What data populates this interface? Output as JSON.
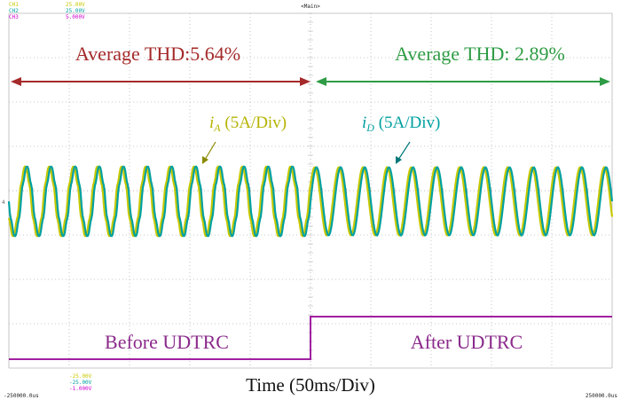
{
  "scope": {
    "top_center_label": "<Main>",
    "side_marker": "4",
    "channels": [
      {
        "name": "CH1",
        "value": "25.00V",
        "color": "#c8c800"
      },
      {
        "name": "CH2",
        "value": "25.00V",
        "color": "#00a0a0"
      },
      {
        "name": "CH3",
        "value": "5.000V",
        "color": "#d000d0"
      }
    ],
    "bottom_values": [
      {
        "value": "-25.00V",
        "color": "#c8c800"
      },
      {
        "value": "-25.00V",
        "color": "#00a0a0"
      },
      {
        "value": "-1.000V",
        "color": "#d000d0"
      }
    ],
    "time_start": "-250000.0us",
    "time_end": "250000.0us"
  },
  "annotations": {
    "thd_before": "Average THD:5.64%",
    "thd_after": "Average THD: 2.89%",
    "ia_symbol": "i",
    "ia_sub": "A",
    "ia_scale": " (5A/Div)",
    "id_symbol": "i",
    "id_sub": "D",
    "id_scale": " (5A/Div)",
    "before_label": "Before UDTRC",
    "after_label": "After UDTRC",
    "time_label": "Time (50ms/Div)"
  },
  "colors": {
    "thd_before": "#a52a2a",
    "thd_after": "#2e9c44",
    "ia": "#c8c800",
    "id": "#00a0a0",
    "step": "#a020a0",
    "step_text": "#8b2a8b",
    "grid": "#b8b8b8"
  },
  "chart_data": {
    "type": "line",
    "x_range_ms": [
      -250,
      250
    ],
    "x_division_ms": 50,
    "grid": true,
    "series": [
      {
        "name": "iA",
        "frequency_hz": 50,
        "amplitude_div": 1.6,
        "phase_offset_ms": -1.5,
        "distorted_before_ms": 0
      },
      {
        "name": "iD",
        "frequency_hz": 50,
        "amplitude_div": 1.6,
        "phase_offset_ms": 0,
        "distorted_before_ms": 0
      },
      {
        "name": "UDTRC enable",
        "step_time_ms": 0,
        "levels": [
          "low",
          "high"
        ]
      }
    ]
  }
}
